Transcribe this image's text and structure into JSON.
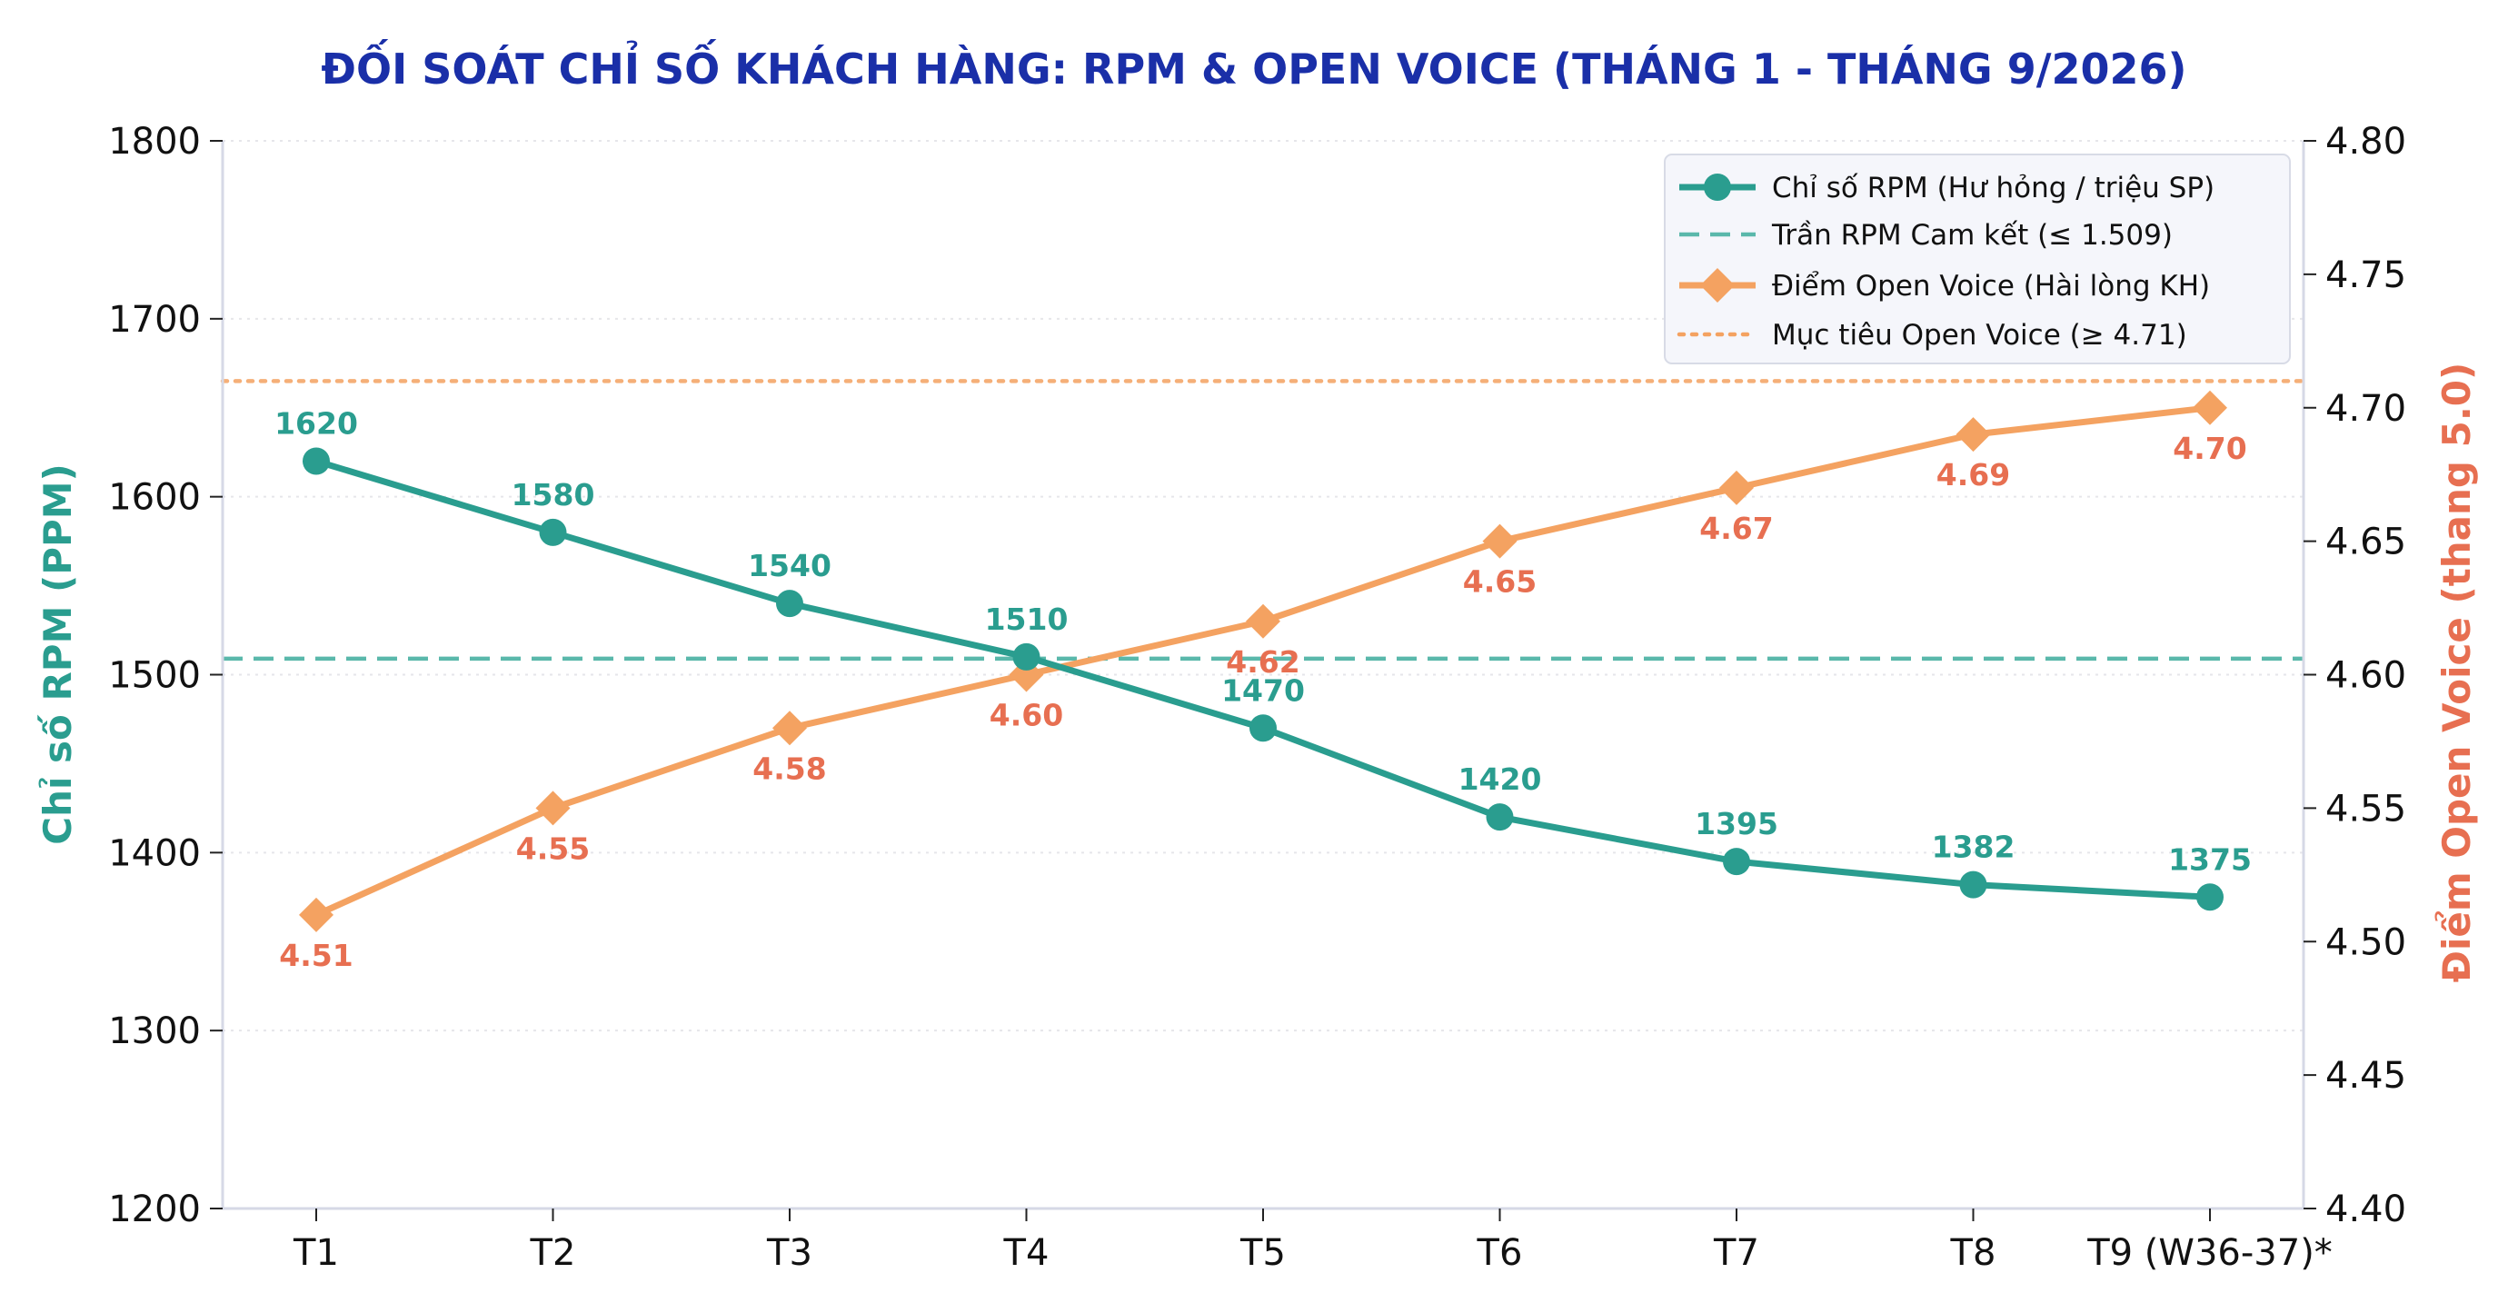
{
  "colors": {
    "rpm": "#2a9d8f",
    "rpm_ceiling": "#5ab8ab",
    "open_voice": "#f4a261",
    "open_voice_target": "#f4a261",
    "rpm_label": "#2a9d8f",
    "ov_label": "#e76f51",
    "title": "#1a2fa8",
    "axis": "#d6d9e6",
    "grid": "#e6e6ea"
  },
  "chart_data": {
    "type": "line",
    "title": "ĐỐI SOÁT CHỈ SỐ KHÁCH HÀNG: RPM & OPEN VOICE (THÁNG 1 - THÁNG 9/2026)",
    "categories": [
      "T1",
      "T2",
      "T3",
      "T4",
      "T5",
      "T6",
      "T7",
      "T8",
      "T9 (W36-37)*"
    ],
    "ylabel_left": "Chỉ số RPM (PPM)",
    "ylabel_right": "Điểm Open Voice (thang 5.0)",
    "ylim_left": [
      1200,
      1800
    ],
    "ylim_right": [
      4.4,
      4.8
    ],
    "yticks_left": [
      "1200",
      "1300",
      "1400",
      "1500",
      "1600",
      "1700",
      "1800"
    ],
    "yticks_right": [
      "4.40",
      "4.45",
      "4.50",
      "4.55",
      "4.60",
      "4.65",
      "4.70",
      "4.75",
      "4.80"
    ],
    "grid": "horizontal dotted",
    "legend_position": "top-right",
    "series": [
      {
        "name": "Chỉ số RPM (Hư hỏng / triệu SP)",
        "axis": "left",
        "marker": "circle",
        "values": [
          1620,
          1580,
          1540,
          1510,
          1470,
          1420,
          1395,
          1382,
          1375
        ],
        "labels": [
          "1620",
          "1580",
          "1540",
          "1510",
          "1470",
          "1420",
          "1395",
          "1382",
          "1375"
        ]
      },
      {
        "name": "Điểm Open Voice (Hài lòng KH)",
        "axis": "right",
        "marker": "diamond",
        "values": [
          4.51,
          4.55,
          4.58,
          4.6,
          4.62,
          4.65,
          4.67,
          4.69,
          4.7
        ],
        "labels": [
          "4.51",
          "4.55",
          "4.58",
          "4.60",
          "4.62",
          "4.65",
          "4.67",
          "4.69",
          "4.70"
        ]
      }
    ],
    "reference_lines": [
      {
        "name": "Trần RPM Cam kết (≤ 1.509)",
        "axis": "left",
        "value": 1509,
        "style": "dashed"
      },
      {
        "name": "Mục tiêu Open Voice (≥ 4.71)",
        "axis": "right",
        "value": 4.71,
        "style": "dotted"
      }
    ],
    "legend": [
      {
        "label": "Chỉ số RPM (Hư hỏng / triệu SP)",
        "kind": "line-circle"
      },
      {
        "label": "Trần RPM Cam kết (≤ 1.509)",
        "kind": "dashed"
      },
      {
        "label": "Điểm Open Voice (Hài lòng KH)",
        "kind": "line-diamond"
      },
      {
        "label": "Mục tiêu Open Voice (≥ 4.71)",
        "kind": "dotted"
      }
    ]
  }
}
